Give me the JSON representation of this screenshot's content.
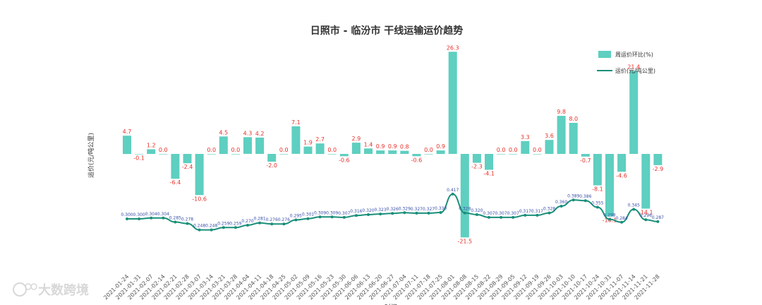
{
  "chart_data": {
    "type": "bar",
    "title": "日照市 - 临汾市 干线运输运价趋势",
    "ylabel": "运价(元/吨公里)",
    "xlabel": "时间",
    "legend_position": "top-right",
    "grid": false,
    "categories": [
      "2021-01-24",
      "2021-01-31",
      "2021-02-07",
      "2021-02-14",
      "2021-02-21",
      "2021-02-28",
      "2021-03-07",
      "2021-03-14",
      "2021-03-21",
      "2021-03-28",
      "2021-04-04",
      "2021-04-11",
      "2021-04-18",
      "2021-04-25",
      "2021-05-02",
      "2021-05-09",
      "2021-05-16",
      "2021-05-23",
      "2021-05-30",
      "2021-06-06",
      "2021-06-13",
      "2021-06-20",
      "2021-06-27",
      "2021-07-04",
      "2021-07-11",
      "2021-07-18",
      "2021-07-25",
      "2021-08-01",
      "2021-08-08",
      "2021-08-15",
      "2021-08-22",
      "2021-08-29",
      "2021-09-05",
      "2021-09-12",
      "2021-09-19",
      "2021-09-26",
      "2021-10-03",
      "2021-10-10",
      "2021-10-17",
      "2021-10-24",
      "2021-10-31",
      "2021-11-07",
      "2021-11-14",
      "2021-11-21",
      "2021-11-28"
    ],
    "tick_labels": [
      "2021-01-24",
      "2021-01-31",
      "2021-02-07",
      "2021-02-14",
      "2021-02-21",
      "2021-02-28",
      "2021-03-07",
      "2021-03-14",
      "2021-03-21",
      "2021-03-28",
      "2021-04-04",
      "2021-04-11",
      "2021-04-18",
      "2021-04-25",
      "2021-05-02",
      "2021-05-09",
      "2021-05-16",
      "2021-05-23",
      "2021-05-30",
      "2021-06-06",
      "2021-06-13",
      "2021-06-20",
      "2021-06-27",
      "2021-07-04",
      "2021-07-11",
      "2021-07-18",
      "2021-07-25",
      "2021-08-01",
      "2021-08-08",
      "2021-08-15",
      "2021-08-22",
      "2021-08-29",
      "2021-09-05",
      "2021-09-12",
      "2021-09-19",
      "2021-09-26",
      "2021-10-03",
      "2021-10-10",
      "2021-10-17",
      "2021-10-24",
      "2021-10-31",
      "2021-11-07",
      "2021-11-14",
      "2021-11-21",
      "2021-11-28"
    ],
    "series": [
      {
        "name": "周运价环比(%)",
        "type": "bar",
        "color": "#5ecfc0",
        "values": [
          4.7,
          -0.1,
          1.2,
          0.0,
          -6.4,
          -2.4,
          -10.6,
          0.0,
          4.5,
          0.0,
          4.3,
          4.2,
          -2.0,
          0.0,
          7.1,
          1.9,
          2.7,
          0.0,
          -0.6,
          2.9,
          1.4,
          0.9,
          0.9,
          0.8,
          -0.6,
          0.0,
          0.9,
          26.3,
          -21.5,
          -2.3,
          -4.1,
          0.0,
          0.0,
          3.3,
          0.0,
          3.6,
          9.8,
          8.0,
          -0.7,
          -8.1,
          -16.1,
          -4.6,
          21.4,
          -14.1,
          -2.9
        ],
        "labels": [
          "4.7",
          "-0.1",
          "1.2",
          "0.0",
          "-6.4",
          "-2.4",
          "-10.6",
          "0.0",
          "4.5",
          "0.0",
          "4.3",
          "4.2",
          "-2.0",
          "0.0",
          "7.1",
          "1.9",
          "2.7",
          "0.0",
          "-0.6",
          "2.9",
          "1.4",
          "0.9",
          "0.9",
          "0.8",
          "-0.6",
          "0.0",
          "0.9",
          "26.3",
          "-21.5",
          "-2.3",
          "-4.1",
          "0.0",
          "0.0",
          "3.3",
          "0.0",
          "3.6",
          "9.8",
          "8.0",
          "-0.7",
          "-8.1",
          "-16.1",
          "-4.6",
          "21.4",
          "-14.1",
          "-2.9"
        ]
      },
      {
        "name": "运价(元/吨公里)",
        "type": "line",
        "color": "#1a8f7a",
        "values": [
          0.3,
          0.3,
          0.304,
          0.304,
          0.285,
          0.278,
          0.248,
          0.248,
          0.259,
          0.259,
          0.27,
          0.281,
          0.276,
          0.276,
          0.295,
          0.301,
          0.309,
          0.309,
          0.307,
          0.316,
          0.32,
          0.323,
          0.326,
          0.329,
          0.327,
          0.327,
          0.33,
          0.417,
          0.328,
          0.32,
          0.307,
          0.307,
          0.307,
          0.317,
          0.317,
          0.328,
          0.36,
          0.389,
          0.386,
          0.355,
          0.298,
          0.284,
          0.345,
          0.296,
          0.287
        ],
        "labels": [
          "0.300",
          "0.300",
          "0.304",
          "0.304",
          "0.285",
          "0.278",
          "0.248",
          "0.248",
          "0.259",
          "0.259",
          "0.270",
          "0.281",
          "0.276",
          "0.276",
          "0.295",
          "0.301",
          "0.309",
          "0.309",
          "0.307",
          "0.316",
          "0.320",
          "0.323",
          "0.326",
          "0.329",
          "0.327",
          "0.327",
          "0.330",
          "0.417",
          "0.328",
          "0.320",
          "0.307",
          "0.307",
          "0.307",
          "0.317",
          "0.317",
          "0.328",
          "0.360",
          "0.389",
          "0.386",
          "0.355",
          "0.298",
          "0.284",
          "0.345",
          "0.296",
          "0.287"
        ]
      }
    ]
  },
  "watermark": "大数跨境"
}
